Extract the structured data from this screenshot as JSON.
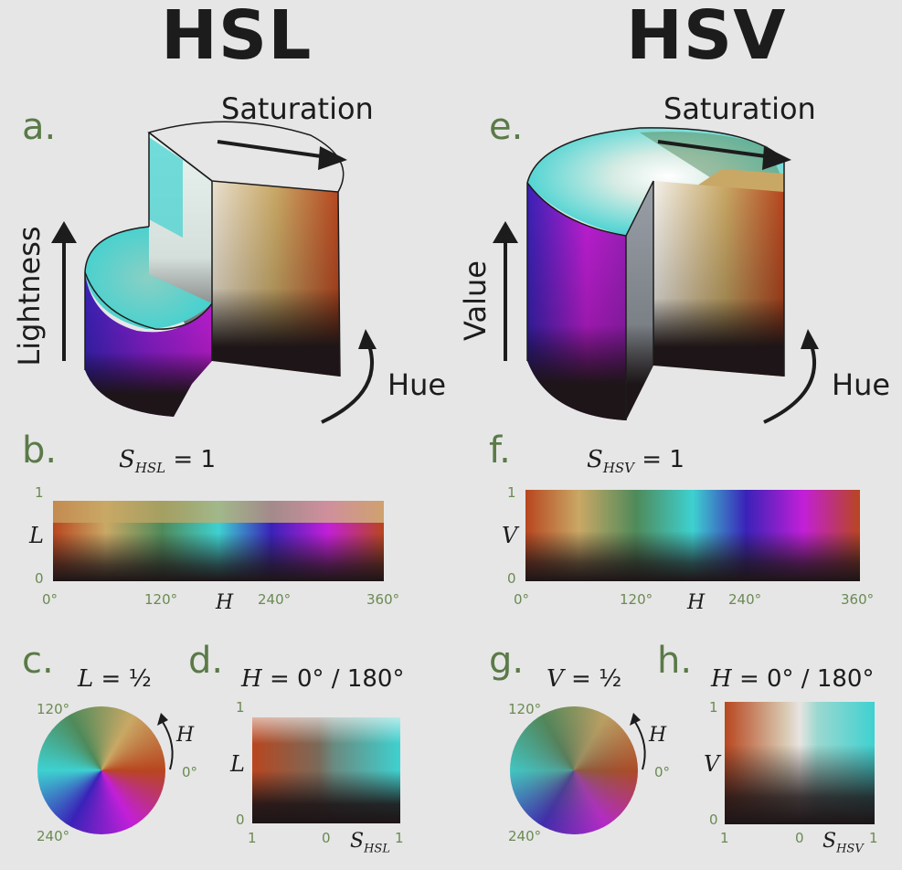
{
  "hsl": {
    "title": "HSL",
    "cyl": {
      "letter": "a.",
      "saturation": "Saturation",
      "vertical": "Lightness",
      "hue": "Hue"
    },
    "strip": {
      "letter": "b.",
      "eq_var": "S",
      "eq_sub": "HSL",
      "eq_rest": "= 1",
      "y_label": "L",
      "y_top": "1",
      "y_bottom": "0",
      "x_label": "H",
      "x_ticks": [
        "0°",
        "120°",
        "240°",
        "360°"
      ]
    },
    "disc": {
      "letter": "c.",
      "eq_var": "L",
      "eq_rest": "= ½",
      "tick_120": "120°",
      "tick_240": "240°",
      "tick_0": "0°",
      "arrow_label": "H"
    },
    "sat": {
      "letter": "d.",
      "eq_var": "H",
      "eq_rest": "= 0° / 180°",
      "y_label": "L",
      "y_top": "1",
      "y_bottom": "0",
      "x_left": "1",
      "x_mid": "0",
      "x_right": "1",
      "x_var": "S",
      "x_sub": "HSL"
    }
  },
  "hsv": {
    "title": "HSV",
    "cyl": {
      "letter": "e.",
      "saturation": "Saturation",
      "vertical": "Value",
      "hue": "Hue"
    },
    "strip": {
      "letter": "f.",
      "eq_var": "S",
      "eq_sub": "HSV",
      "eq_rest": "= 1",
      "y_label": "V",
      "y_top": "1",
      "y_bottom": "0",
      "x_label": "H",
      "x_ticks": [
        "0°",
        "120°",
        "240°",
        "360°"
      ]
    },
    "disc": {
      "letter": "g.",
      "eq_var": "V",
      "eq_rest": "= ½",
      "tick_120": "120°",
      "tick_240": "240°",
      "tick_0": "0°",
      "arrow_label": "H"
    },
    "sat": {
      "letter": "h.",
      "eq_var": "H",
      "eq_rest": "= 0° / 180°",
      "y_label": "V",
      "y_top": "1",
      "y_bottom": "0",
      "x_left": "1",
      "x_mid": "0",
      "x_right": "1",
      "x_var": "S",
      "x_sub": "HSV"
    }
  },
  "colors": {
    "background": "#e6e6e6",
    "label_green": "#5a7a48",
    "hue_red": "#b8461f",
    "hue_yellow": "#c9a865",
    "hue_green": "#4f8a5a",
    "hue_cyan": "#3ed1d0",
    "hue_blue": "#3a22b8",
    "hue_magenta": "#c21fd8",
    "dark": "#1d1517"
  }
}
